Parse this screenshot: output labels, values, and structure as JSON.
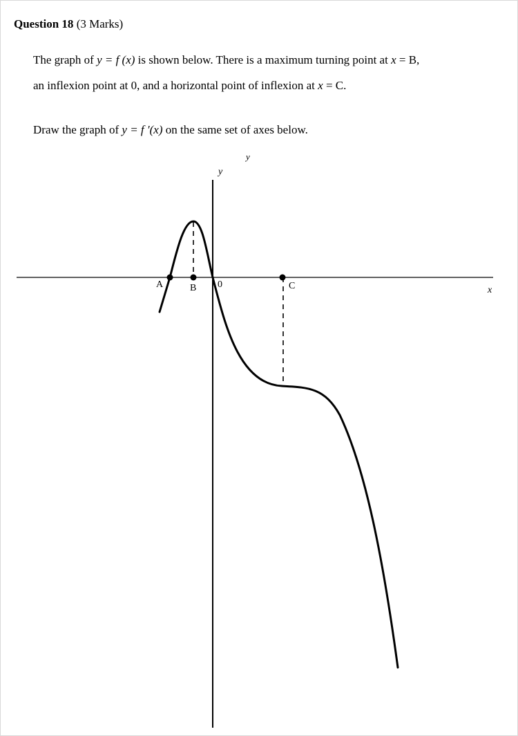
{
  "question": {
    "number": "Question 18",
    "marks": "(3 Marks)"
  },
  "text": {
    "line1_a": "The graph of ",
    "line1_func": "y = f (x)",
    "line1_b": " is shown below. There is a maximum turning point at ",
    "line1_math": "x",
    "line1_c": " = B,",
    "line2_a": "an inflexion point at 0, and a horizontal point of inflexion at ",
    "line2_math": "x",
    "line2_b": " = C.",
    "line3_a": "Draw the graph of ",
    "line3_func": "y = f ′(x)",
    "line3_b": " on the same set of axes below."
  },
  "graph": {
    "stray_label": "y",
    "y_axis_label": "y",
    "x_axis_label": "x",
    "point_labels": {
      "A": "A",
      "B": "B",
      "origin": "0",
      "C": "C"
    }
  }
}
